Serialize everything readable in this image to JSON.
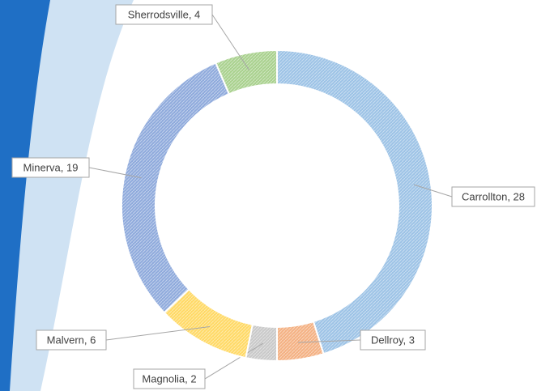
{
  "chart_data": {
    "type": "donut",
    "categories": [
      "Carrollton",
      "Dellroy",
      "Magnolia",
      "Malvern",
      "Minerva",
      "Sherrodsville"
    ],
    "values": [
      28,
      3,
      2,
      6,
      19,
      4
    ],
    "value_labels": [
      "Carrollton, 28",
      "Dellroy, 3",
      "Magnolia, 2",
      "Malvern, 6",
      "Minerva, 19",
      "Sherrodsville, 4"
    ],
    "colors": [
      "#9dc3e6",
      "#f4b183",
      "#c9c9c9",
      "#ffd966",
      "#8faadc",
      "#a9d18e"
    ]
  }
}
